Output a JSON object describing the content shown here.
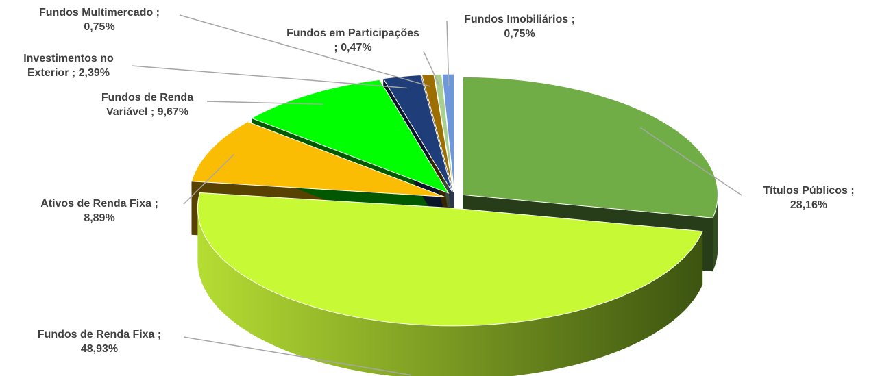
{
  "chart_data": {
    "type": "pie",
    "categories": [
      "Títulos Públicos ;",
      "Fundos de Renda Fixa ;",
      "Ativos de Renda Fixa ;",
      "Fundos de Renda Variável ;",
      "Investimentos no Exterior ;",
      "Fundos Multimercado ;",
      "Fundos em Participações ;",
      "Fundos Imobiliários  ;"
    ],
    "values": [
      28.16,
      48.93,
      8.89,
      9.67,
      2.39,
      0.75,
      0.47,
      0.75
    ],
    "value_labels": [
      "28,16%",
      "48,93%",
      "8,89%",
      "9,67%",
      "2,39%",
      "0,75%",
      "0,47%",
      "0,75%"
    ],
    "colors": [
      "#70ad47",
      "#c8f935",
      "#fbbc04",
      "#00ff00",
      "#1f3d78",
      "#9c6f00",
      "#a9d08e",
      "#6f97dc"
    ]
  }
}
